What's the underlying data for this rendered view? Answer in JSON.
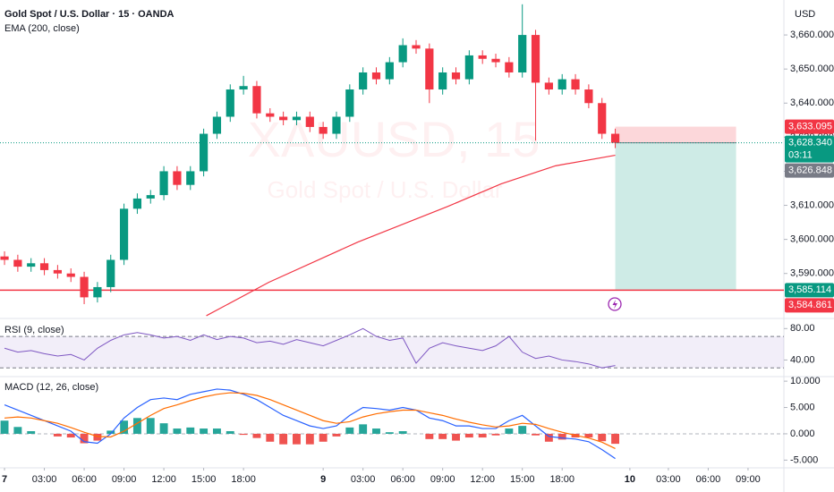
{
  "chart_data": [
    {
      "type": "candlestick",
      "title": "Gold Spot / U.S. Dollar · 15 · OANDA",
      "watermark_title": "XAUUSD, 15",
      "watermark_subtitle": "Gold Spot / U.S. Dollar",
      "currency_label": "USD",
      "x": [
        0,
        1,
        2,
        3,
        4,
        5,
        6,
        7,
        8,
        9,
        10,
        11,
        12,
        13,
        14,
        15,
        16,
        17,
        18,
        19,
        20,
        21,
        22,
        23,
        24,
        25,
        26,
        27,
        28,
        29,
        30,
        31,
        32,
        33,
        34,
        35,
        36,
        37,
        38,
        39,
        40,
        41,
        42,
        43,
        44,
        45,
        46
      ],
      "open": [
        3595,
        3594,
        3592,
        3593,
        3591,
        3590,
        3589,
        3583,
        3586,
        3594,
        3609,
        3612,
        3613,
        3620,
        3616,
        3620,
        3631,
        3636,
        3644,
        3645,
        3637,
        3636,
        3635,
        3636,
        3633,
        3631,
        3636,
        3644,
        3649,
        3647,
        3652,
        3657,
        3656,
        3644,
        3649,
        3647,
        3654,
        3653,
        3652,
        3649,
        3660,
        3646,
        3644,
        3647,
        3644,
        3640,
        3631
      ],
      "high": [
        3596.5,
        3595.5,
        3594.5,
        3594.5,
        3592.5,
        3591.5,
        3590.5,
        3587.5,
        3595.5,
        3610.5,
        3613.5,
        3614.5,
        3621.5,
        3621.5,
        3621.5,
        3632.5,
        3637.5,
        3645.5,
        3648,
        3646.5,
        3638.5,
        3637.5,
        3637.5,
        3637.5,
        3634.5,
        3637.5,
        3645.5,
        3650.5,
        3650.5,
        3653.5,
        3659,
        3658.5,
        3657.5,
        3650.5,
        3650.5,
        3655.5,
        3655.5,
        3654.5,
        3653.5,
        3669,
        3661.5,
        3647.5,
        3648.5,
        3648.5,
        3645.5,
        3641.5,
        3632.5
      ],
      "low": [
        3592.5,
        3590.5,
        3590.5,
        3589.5,
        3588.5,
        3587.5,
        3581,
        3581.5,
        3584.5,
        3592.5,
        3607.5,
        3610.5,
        3611.5,
        3614.5,
        3614.5,
        3618.5,
        3629.5,
        3634.5,
        3642.5,
        3635.5,
        3634.5,
        3633.5,
        3633.5,
        3631.5,
        3629.5,
        3629.5,
        3634.5,
        3642.5,
        3645.5,
        3645.5,
        3650.5,
        3654.5,
        3640,
        3642.5,
        3645.5,
        3645.5,
        3651.5,
        3650.5,
        3647.5,
        3647.5,
        3629,
        3642.5,
        3642.5,
        3642.5,
        3638.5,
        3629.5,
        3626.8
      ],
      "close": [
        3594,
        3592,
        3593,
        3591,
        3590,
        3589,
        3583,
        3586,
        3594,
        3609,
        3612,
        3613,
        3620,
        3616,
        3620,
        3631,
        3636,
        3644,
        3645,
        3637,
        3636,
        3635,
        3636,
        3633,
        3631,
        3636,
        3644,
        3649,
        3647,
        3652,
        3657,
        3656,
        3644,
        3649,
        3647,
        3654,
        3653,
        3652,
        3649,
        3660,
        3646,
        3644,
        3647,
        3644,
        3640,
        3631,
        3628.34
      ],
      "up_color": "#089981",
      "down_color": "#f23645",
      "xlim": [
        -0.34,
        58.7
      ],
      "ylim": [
        3576.8,
        3670.26
      ],
      "yticks": [
        {
          "value": 3590,
          "label": "3,590.000"
        },
        {
          "value": 3600,
          "label": "3,600.000"
        },
        {
          "value": 3610,
          "label": "3,610.000"
        },
        {
          "value": 3620,
          "label": "3,620.000"
        },
        {
          "value": 3630,
          "label": "3,630.000"
        },
        {
          "value": 3640,
          "label": "3,640.000"
        },
        {
          "value": 3650,
          "label": "3,650.000"
        },
        {
          "value": 3660,
          "label": "3,660.000"
        }
      ],
      "xticks": [
        {
          "value": 0,
          "label": "7"
        },
        {
          "value": 3,
          "label": "03:00"
        },
        {
          "value": 6,
          "label": "06:00"
        },
        {
          "value": 9,
          "label": "09:00"
        },
        {
          "value": 12,
          "label": "12:00"
        },
        {
          "value": 15,
          "label": "15:00"
        },
        {
          "value": 18,
          "label": "18:00"
        },
        {
          "value": 24,
          "label": "9"
        },
        {
          "value": 27,
          "label": "03:00"
        },
        {
          "value": 30,
          "label": "06:00"
        },
        {
          "value": 33,
          "label": "09:00"
        },
        {
          "value": 36,
          "label": "12:00"
        },
        {
          "value": 39,
          "label": "15:00"
        },
        {
          "value": 42,
          "label": "18:00"
        },
        {
          "value": 47.1,
          "label": "10"
        },
        {
          "value": 50,
          "label": "03:00"
        },
        {
          "value": 53,
          "label": "06:00"
        },
        {
          "value": 56,
          "label": "09:00"
        }
      ],
      "ema": {
        "name": "EMA (200, close)",
        "color": "#f23645",
        "x": [
          15.2,
          19.9,
          26.6,
          33.4,
          37.4,
          41.5,
          46
        ],
        "values": [
          3577.6,
          3587.4,
          3599.2,
          3609.7,
          3616.3,
          3621.6,
          3624.7
        ]
      },
      "hline": {
        "value": 3585.114,
        "color": "#f23645"
      },
      "position": {
        "x_start": 46,
        "x_end": 55.1,
        "entry": 3628.34,
        "stop": 3633.095,
        "target": 3585.114
      },
      "price_labels": [
        {
          "value": 3633.095,
          "label": "3,633.095",
          "color": "#f23645"
        },
        {
          "value": 3628.34,
          "label": "3,628.340",
          "color": "#089981",
          "countdown": "03:11"
        },
        {
          "value": 3626.848,
          "label": "3,626.848",
          "color": "#787b86"
        },
        {
          "value": 3585.114,
          "label": "3,585.114",
          "color": "#089981"
        },
        {
          "value": 3584.861,
          "label": "3,584.861",
          "color": "#f23645"
        }
      ]
    },
    {
      "type": "line",
      "title": "RSI (9, close)",
      "color": "#7e57c2",
      "values": [
        55,
        50,
        52,
        48,
        45,
        47,
        40,
        55,
        65,
        72,
        75,
        72,
        68,
        70,
        65,
        72,
        66,
        70,
        68,
        62,
        64,
        60,
        66,
        62,
        58,
        65,
        72,
        80,
        70,
        65,
        68,
        36,
        55,
        62,
        58,
        55,
        52,
        58,
        70,
        50,
        42,
        45,
        40,
        38,
        35,
        30,
        33
      ],
      "band": [
        30,
        70
      ],
      "ylim": [
        20,
        90.6
      ],
      "yticks": [
        {
          "value": 80,
          "label": "80.00"
        },
        {
          "value": 40,
          "label": "40.00"
        }
      ]
    },
    {
      "type": "macd",
      "title": "MACD (12, 26, close)",
      "series": [
        {
          "color": "#2962ff",
          "values": [
            5.5,
            4.5,
            3.5,
            2.5,
            1.5,
            0.5,
            -1.5,
            -1.8,
            0,
            3,
            5,
            6.5,
            6.8,
            6.5,
            7.5,
            8,
            8.5,
            8.3,
            7.5,
            6.5,
            5,
            3.5,
            2.5,
            1.5,
            1,
            1.5,
            3.5,
            5,
            4.8,
            4.5,
            5,
            4.5,
            3,
            2.5,
            1.5,
            1.5,
            1,
            1,
            2.5,
            3.5,
            1.5,
            -0.5,
            -0.8,
            -1,
            -1.5,
            -3,
            -4.7
          ]
        },
        {
          "color": "#ff6d00",
          "values": [
            3,
            3.2,
            3,
            2.5,
            2,
            1.2,
            0.3,
            -0.5,
            -0.6,
            0.5,
            2,
            3.5,
            4.8,
            5.5,
            6.3,
            7,
            7.5,
            7.8,
            7.7,
            7.3,
            6.5,
            5.5,
            4.5,
            3.5,
            2.5,
            2,
            2.3,
            3.2,
            3.8,
            4.2,
            4.5,
            4.5,
            4,
            3.5,
            2.8,
            2.2,
            1.7,
            1.3,
            1.5,
            2,
            1.8,
            1,
            0.3,
            -0.3,
            -0.8,
            -1.6,
            -2.8
          ]
        }
      ],
      "histogram": {
        "up_color": "#26a69a",
        "down_color": "#ef5350",
        "values": [
          2.5,
          1.3,
          0.5,
          0,
          -0.5,
          -0.7,
          -1.8,
          -1.3,
          0.6,
          2.5,
          3,
          3,
          2,
          1,
          1.2,
          1,
          1,
          0.5,
          -0.2,
          -0.8,
          -1.5,
          -2,
          -2,
          -2,
          -1.5,
          -0.5,
          1.2,
          1.8,
          1,
          0.3,
          0.5,
          0,
          -1,
          -1,
          -1.3,
          -0.7,
          -0.7,
          -0.3,
          1,
          1.5,
          -0.3,
          -1.5,
          -1.1,
          -0.7,
          -0.7,
          -1.4,
          -1.9
        ]
      },
      "ylim": [
        -6.3,
        10.7
      ],
      "yticks": [
        {
          "value": 10,
          "label": "10.000"
        },
        {
          "value": 5,
          "label": "5.000"
        },
        {
          "value": 0,
          "label": "0.000"
        },
        {
          "value": -5,
          "label": "-5.000"
        }
      ]
    }
  ]
}
